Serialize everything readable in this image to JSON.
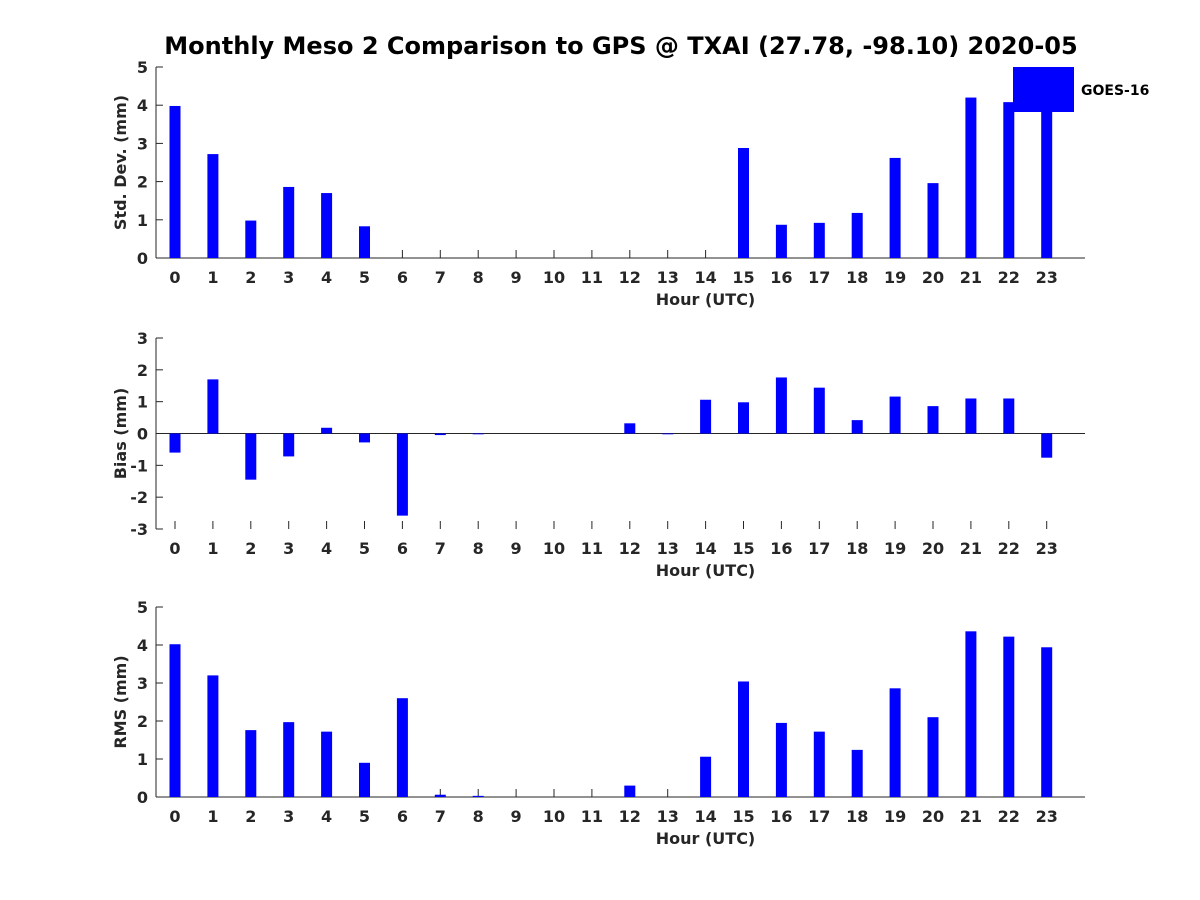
{
  "figure": {
    "title": "Monthly Meso 2 Comparison to GPS @ TXAI (27.78, -98.10) 2020-05"
  },
  "legend": {
    "label": "GOES-16",
    "color": "#0000FF"
  },
  "chart_data": [
    {
      "type": "bar",
      "title": "Monthly Meso 2 Comparison to GPS @ TXAI (27.78, -98.10) 2020-05",
      "xlabel": "Hour (UTC)",
      "ylabel": "Std. Dev. (mm)",
      "ylim": [
        0,
        5
      ],
      "yticks": [
        "0",
        "1",
        "2",
        "3",
        "4",
        "5"
      ],
      "categories": [
        "0",
        "1",
        "2",
        "3",
        "4",
        "5",
        "6",
        "7",
        "8",
        "9",
        "10",
        "11",
        "12",
        "13",
        "14",
        "15",
        "16",
        "17",
        "18",
        "19",
        "20",
        "21",
        "22",
        "23"
      ],
      "series": [
        {
          "name": "GOES-16",
          "color": "#0000FF",
          "values": [
            3.98,
            2.72,
            0.98,
            1.86,
            1.7,
            0.83,
            0,
            0,
            0,
            0,
            0,
            0,
            0,
            0,
            0,
            2.88,
            0.87,
            0.92,
            1.18,
            2.62,
            1.96,
            4.2,
            4.08,
            3.9
          ]
        }
      ]
    },
    {
      "type": "bar",
      "xlabel": "Hour (UTC)",
      "ylabel": "Bias (mm)",
      "ylim": [
        -3,
        3
      ],
      "yticks": [
        "-3",
        "-2",
        "-1",
        "0",
        "1",
        "2",
        "3"
      ],
      "categories": [
        "0",
        "1",
        "2",
        "3",
        "4",
        "5",
        "6",
        "7",
        "8",
        "9",
        "10",
        "11",
        "12",
        "13",
        "14",
        "15",
        "16",
        "17",
        "18",
        "19",
        "20",
        "21",
        "22",
        "23"
      ],
      "series": [
        {
          "name": "GOES-16",
          "color": "#0000FF",
          "values": [
            -0.6,
            1.7,
            -1.45,
            -0.72,
            0.18,
            -0.28,
            -2.58,
            -0.05,
            -0.02,
            0,
            0,
            0,
            0.32,
            -0.01,
            1.06,
            0.98,
            1.76,
            1.44,
            0.42,
            1.16,
            0.86,
            1.1,
            1.1,
            -0.76
          ]
        }
      ]
    },
    {
      "type": "bar",
      "xlabel": "Hour (UTC)",
      "ylabel": "RMS (mm)",
      "ylim": [
        0,
        5
      ],
      "yticks": [
        "0",
        "1",
        "2",
        "3",
        "4",
        "5"
      ],
      "categories": [
        "0",
        "1",
        "2",
        "3",
        "4",
        "5",
        "6",
        "7",
        "8",
        "9",
        "10",
        "11",
        "12",
        "13",
        "14",
        "15",
        "16",
        "17",
        "18",
        "19",
        "20",
        "21",
        "22",
        "23"
      ],
      "series": [
        {
          "name": "GOES-16",
          "color": "#0000FF",
          "values": [
            4.02,
            3.2,
            1.76,
            1.97,
            1.72,
            0.9,
            2.6,
            0.06,
            0.03,
            0,
            0,
            0,
            0.3,
            0,
            1.06,
            3.04,
            1.95,
            1.72,
            1.24,
            2.86,
            2.1,
            4.36,
            4.22,
            3.94
          ]
        }
      ]
    }
  ]
}
